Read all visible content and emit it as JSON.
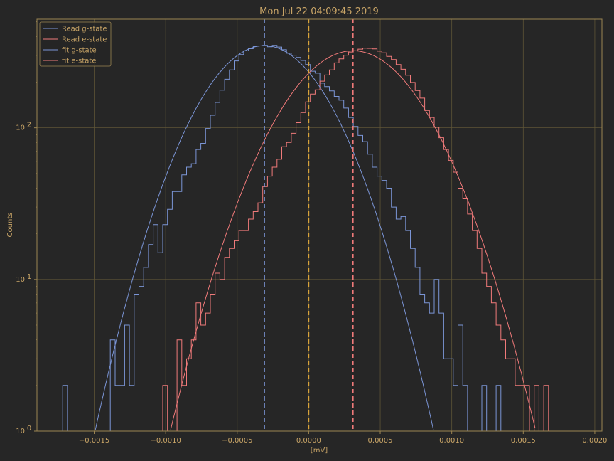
{
  "chart_data": {
    "type": "line",
    "title": "Mon Jul 22 04:09:45 2019",
    "xlabel": "[mV]",
    "ylabel": "Counts",
    "xlim": [
      -0.0019,
      0.00205
    ],
    "ylim": [
      1,
      520
    ],
    "yscale": "log",
    "grid": true,
    "legend_position": "top-left",
    "x_ticks": [
      -0.0015,
      -0.001,
      -0.0005,
      0.0,
      0.0005,
      0.001,
      0.0015,
      0.002
    ],
    "x_tick_labels": [
      "−0.0015",
      "−0.0010",
      "−0.0005",
      "0.0000",
      "0.0005",
      "0.0010",
      "0.0015",
      "0.0020"
    ],
    "y_ticks": [
      1,
      10,
      100
    ],
    "y_tick_labels": [
      "10^0",
      "10^1",
      "10^2"
    ],
    "colors": {
      "background": "#262626",
      "axes_frame": "#9c8552",
      "grid": "#5e5436",
      "text": "#c9a567",
      "g_state": "#7b95d6",
      "e_state": "#f07a7a",
      "threshold": "#d8a33a"
    },
    "vlines": [
      {
        "name": "g-mean",
        "x": -0.00031,
        "color": "#7b95d6"
      },
      {
        "name": "threshold",
        "x": 0.0,
        "color": "#d8a33a"
      },
      {
        "name": "e-mean",
        "x": 0.00031,
        "color": "#f07a7a"
      }
    ],
    "bin_edges_start": -0.00172,
    "bin_width": 3.33e-05,
    "series": [
      {
        "name": "Read g-state",
        "kind": "histogram",
        "color": "#7b95d6",
        "counts": [
          2,
          0,
          0,
          0,
          0,
          0,
          0,
          0,
          0,
          0,
          4,
          2,
          2,
          5,
          2,
          8,
          9,
          12,
          17,
          23,
          15,
          23,
          29,
          38,
          38,
          49,
          55,
          58,
          72,
          79,
          99,
          121,
          147,
          177,
          209,
          241,
          276,
          304,
          322,
          332,
          345,
          347,
          350,
          342,
          350,
          341,
          327,
          310,
          301,
          291,
          278,
          261,
          236,
          229,
          197,
          187,
          175,
          161,
          152,
          135,
          117,
          102,
          89,
          81,
          67,
          55,
          48,
          45,
          40,
          30,
          25,
          26,
          21,
          16,
          12,
          8,
          7,
          6,
          10,
          6,
          3,
          3,
          2,
          5,
          2,
          1,
          1,
          1,
          2,
          1,
          1,
          2,
          1,
          1
        ]
      },
      {
        "name": "Read e-state",
        "kind": "histogram",
        "color": "#f07a7a",
        "counts": [
          0,
          0,
          0,
          0,
          0,
          0,
          0,
          0,
          0,
          0,
          0,
          0,
          0,
          0,
          0,
          0,
          0,
          0,
          0,
          0,
          0,
          2,
          1,
          1,
          4,
          2,
          3,
          4,
          7,
          5,
          6,
          8,
          11,
          10,
          14,
          16,
          18,
          21,
          21,
          25,
          28,
          32,
          41,
          48,
          55,
          62,
          75,
          80,
          92,
          108,
          126,
          148,
          167,
          178,
          203,
          223,
          241,
          268,
          285,
          301,
          316,
          322,
          330,
          335,
          334,
          331,
          320,
          312,
          296,
          282,
          261,
          243,
          222,
          199,
          176,
          157,
          130,
          117,
          101,
          86,
          72,
          61,
          51,
          40,
          34,
          27,
          21,
          16,
          11,
          9,
          7,
          5,
          4,
          3,
          3,
          2,
          2,
          2,
          1,
          2,
          1,
          2
        ]
      },
      {
        "name": "fit g-state",
        "kind": "gaussian",
        "color": "#7b95d6",
        "amplitude": 348,
        "mean": -0.00031,
        "sigma": 0.000346
      },
      {
        "name": "fit e-state",
        "kind": "gaussian",
        "color": "#f07a7a",
        "amplitude": 322,
        "mean": 0.00031,
        "sigma": 0.000376
      }
    ]
  }
}
